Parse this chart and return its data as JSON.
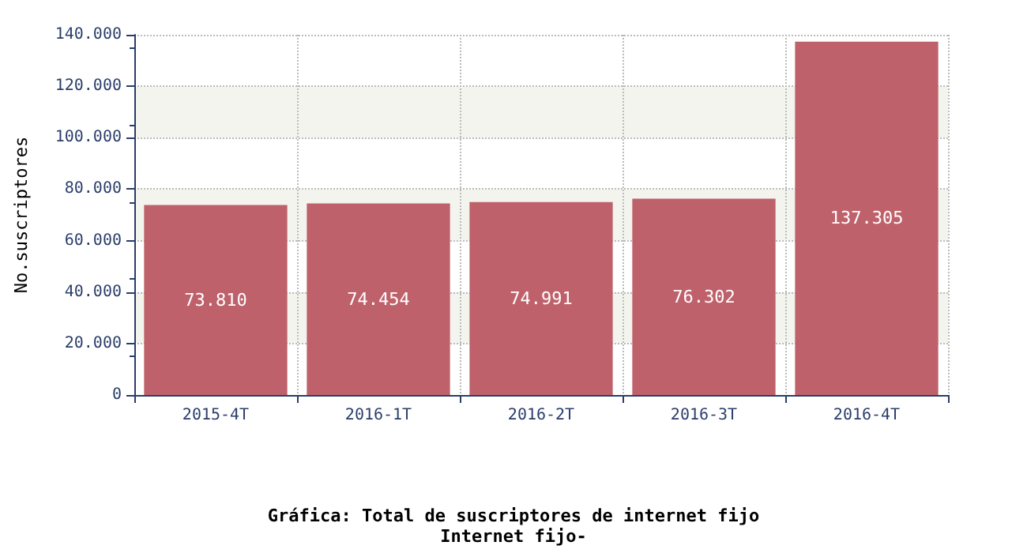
{
  "chart_data": {
    "type": "bar",
    "title": "Gráfica: Total de suscriptores de internet fijo",
    "subtitle": "Internet fijo-",
    "ylabel": "No.suscriptores",
    "categories": [
      "2015-4T",
      "2016-1T",
      "2016-2T",
      "2016-3T",
      "2016-4T"
    ],
    "values": [
      73810,
      74454,
      74991,
      76302,
      137305
    ],
    "value_labels": [
      "73.810",
      "74.454",
      "74.991",
      "76.302",
      "137.305"
    ],
    "color": "#bf616b",
    "ylim": [
      0,
      140000
    ],
    "yticks": [
      {
        "value": 0,
        "label": "0"
      },
      {
        "value": 20000,
        "label": "20.000"
      },
      {
        "value": 40000,
        "label": "40.000"
      },
      {
        "value": 60000,
        "label": "60.000"
      },
      {
        "value": 80000,
        "label": "80.000"
      },
      {
        "value": 100000,
        "label": "100.000"
      },
      {
        "value": 120000,
        "label": "120.000"
      },
      {
        "value": 140000,
        "label": "140.000"
      }
    ],
    "grid": true
  }
}
